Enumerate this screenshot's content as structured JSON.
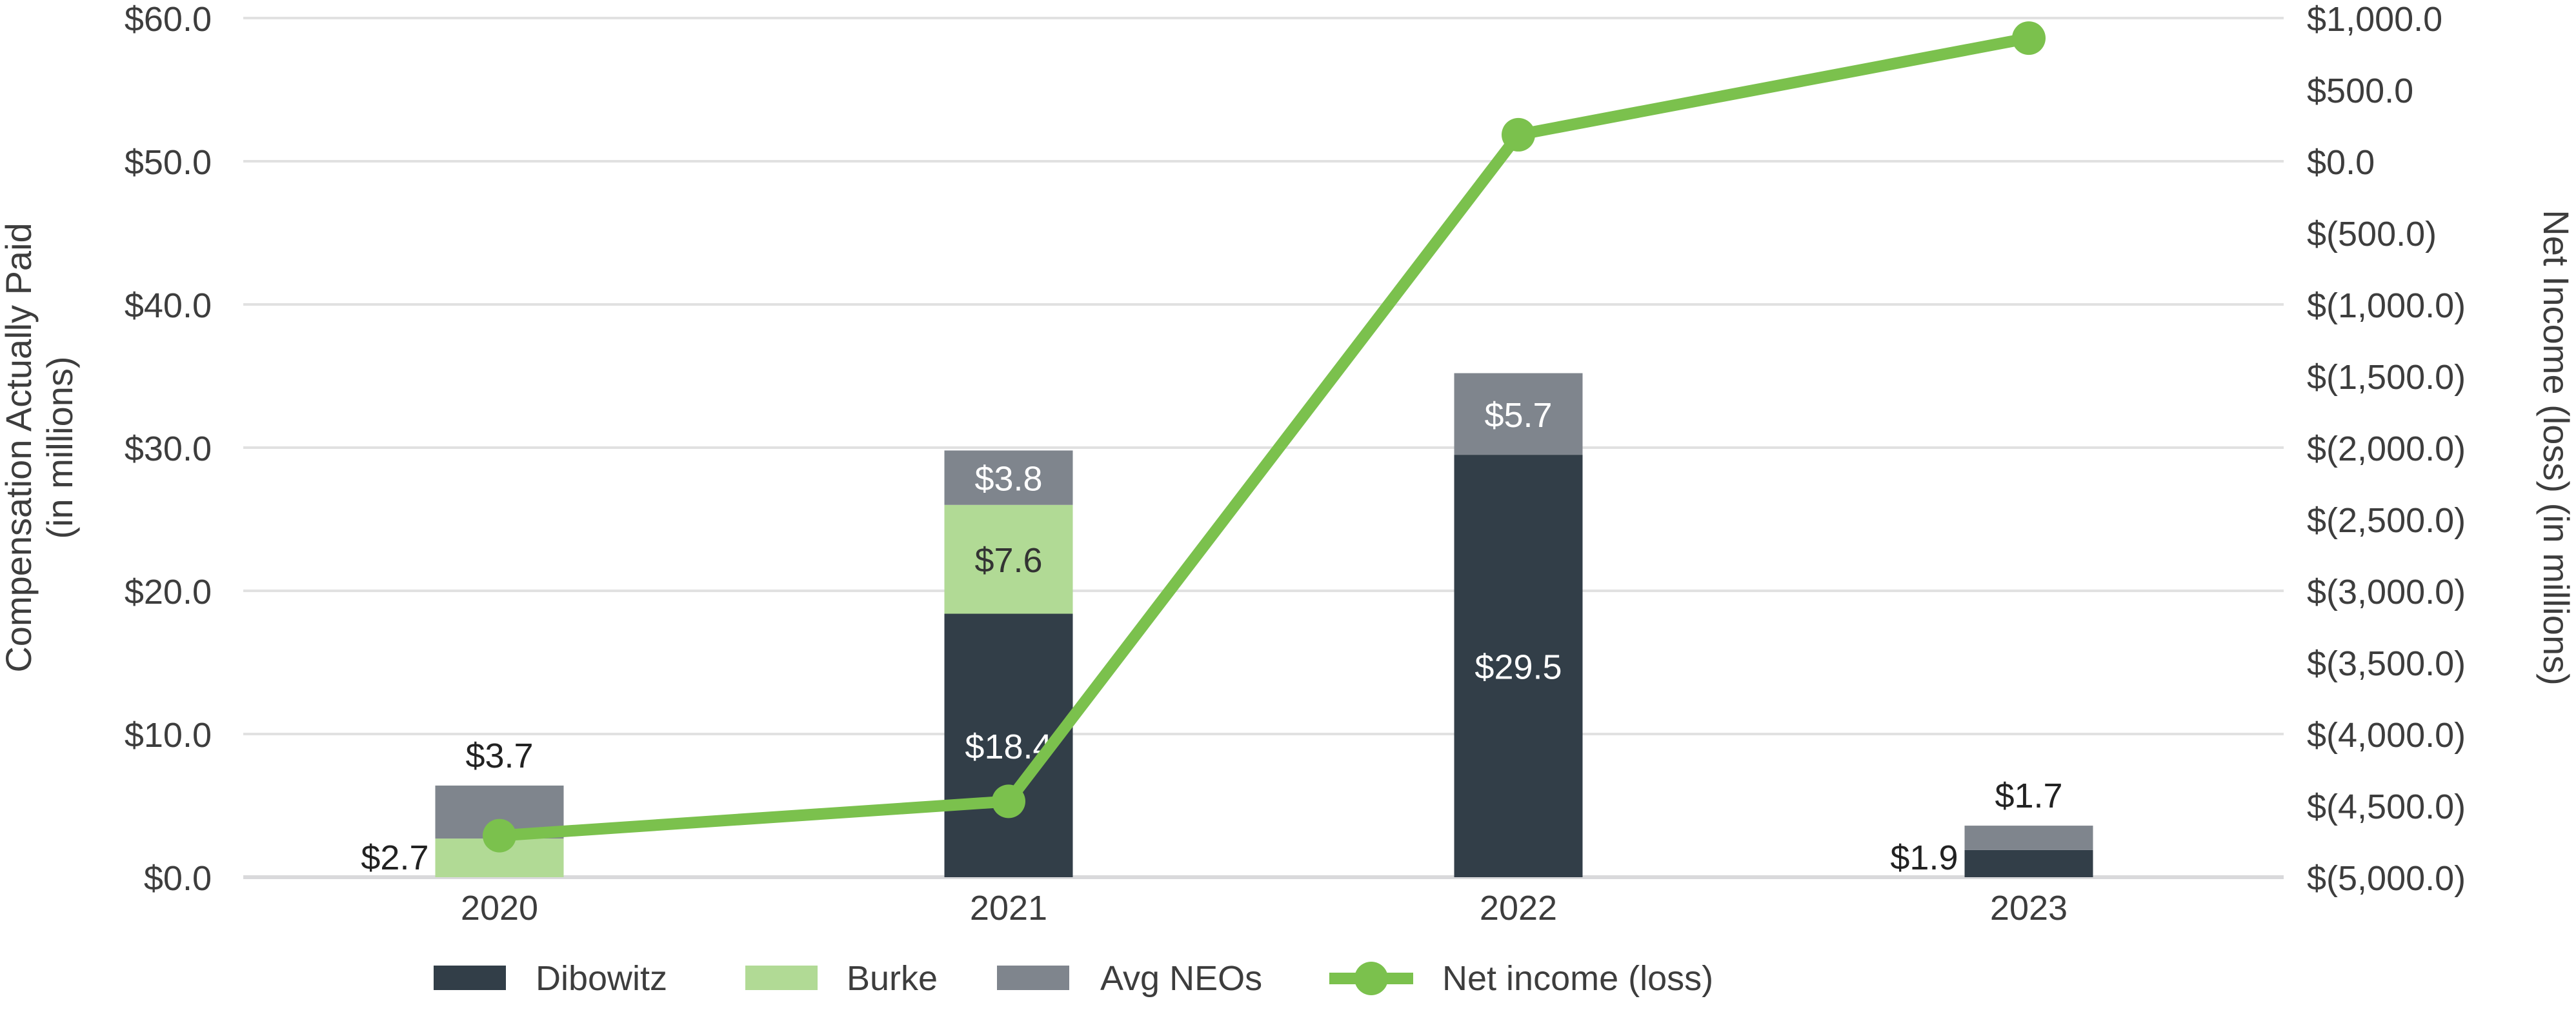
{
  "chart_data": {
    "type": "bar",
    "subtype": "stacked bar with line (dual axis)",
    "categories": [
      "2020",
      "2021",
      "2022",
      "2023"
    ],
    "series": [
      {
        "name": "Dibowitz",
        "axis": "left",
        "kind": "bar",
        "color": "#323e48",
        "values": [
          0,
          18.4,
          29.5,
          1.9
        ]
      },
      {
        "name": "Burke",
        "axis": "left",
        "kind": "bar",
        "color": "#b1da95",
        "values": [
          2.7,
          7.6,
          0,
          0
        ]
      },
      {
        "name": "Avg NEOs",
        "axis": "left",
        "kind": "bar",
        "color": "#7f858d",
        "values": [
          3.7,
          3.8,
          5.7,
          1.7
        ]
      },
      {
        "name": "Net income (loss)",
        "axis": "right",
        "kind": "line",
        "color": "#7bc14d",
        "values": [
          -4710,
          -4470,
          185,
          860
        ]
      }
    ],
    "data_labels": {
      "2020": [
        "$2.7",
        "$3.7"
      ],
      "2021": [
        "$18.4",
        "$7.6",
        "$3.8"
      ],
      "2022": [
        "$29.5",
        "$5.7"
      ],
      "2023": [
        "$1.9",
        "$1.7"
      ]
    },
    "ylabel": "Compensation Actually Paid (in millions)",
    "ylabel_lines": [
      "Compensation Actually Paid",
      "(in millions)"
    ],
    "y2label": "Net Income (loss)  (in millions)",
    "ylim": [
      0,
      60
    ],
    "y2lim": [
      -5000,
      1000
    ],
    "yticks": [
      "$0.0",
      "$10.0",
      "$20.0",
      "$30.0",
      "$40.0",
      "$50.0",
      "$60.0"
    ],
    "y2ticks": [
      "$(5,000.0)",
      "$(4,500.0)",
      "$(4,000.0)",
      "$(3,500.0)",
      "$(3,000.0)",
      "$(2,500.0)",
      "$(2,000.0)",
      "$(1,500.0)",
      "$(1,000.0)",
      "$(500.0)",
      "$0.0",
      "$500.0",
      "$1,000.0"
    ],
    "grid": true,
    "legend_position": "bottom",
    "legend": [
      "Dibowitz",
      "Burke",
      "Avg NEOs",
      "Net income (loss)"
    ]
  }
}
